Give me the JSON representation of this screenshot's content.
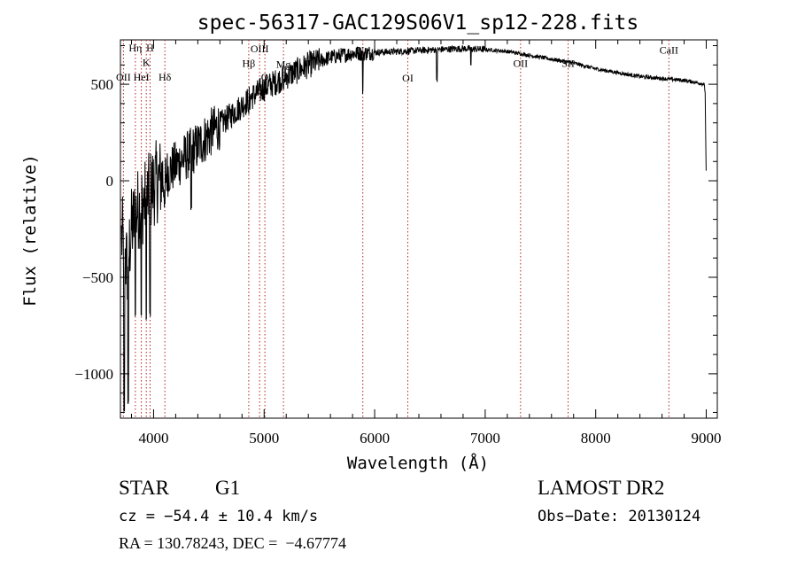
{
  "chart_data": {
    "type": "line",
    "title": "spec-56317-GAC129S06V1_sp12-228.fits",
    "xlabel": "Wavelength (Å)",
    "ylabel": "Flux (relative)",
    "xlim": [
      3700,
      9100
    ],
    "ylim": [
      -1230,
      730
    ],
    "xticks": [
      4000,
      5000,
      6000,
      7000,
      8000,
      9000
    ],
    "yticks": [
      -1000,
      -500,
      0,
      500
    ],
    "grid": false,
    "line_color": "#000000",
    "marker_color": "#b22222",
    "spectrum_anchors": [
      [
        3720,
        -300
      ],
      [
        3760,
        -450
      ],
      [
        3800,
        -250
      ],
      [
        3850,
        -150
      ],
      [
        3900,
        -120
      ],
      [
        3950,
        -80
      ],
      [
        4000,
        -20
      ],
      [
        4100,
        30
      ],
      [
        4200,
        80
      ],
      [
        4300,
        130
      ],
      [
        4400,
        180
      ],
      [
        4500,
        240
      ],
      [
        4600,
        290
      ],
      [
        4700,
        340
      ],
      [
        4800,
        390
      ],
      [
        4900,
        440
      ],
      [
        5000,
        480
      ],
      [
        5100,
        510
      ],
      [
        5200,
        540
      ],
      [
        5300,
        570
      ],
      [
        5400,
        600
      ],
      [
        5500,
        620
      ],
      [
        5600,
        640
      ],
      [
        5700,
        650
      ],
      [
        5800,
        660
      ],
      [
        5900,
        660
      ],
      [
        6000,
        665
      ],
      [
        6200,
        670
      ],
      [
        6400,
        675
      ],
      [
        6600,
        680
      ],
      [
        6800,
        685
      ],
      [
        7000,
        680
      ],
      [
        7200,
        670
      ],
      [
        7400,
        650
      ],
      [
        7600,
        630
      ],
      [
        7800,
        610
      ],
      [
        8000,
        580
      ],
      [
        8200,
        560
      ],
      [
        8400,
        540
      ],
      [
        8600,
        530
      ],
      [
        8800,
        520
      ],
      [
        8950,
        505
      ],
      [
        8980,
        500
      ],
      [
        8990,
        460
      ],
      [
        9000,
        10
      ]
    ],
    "absorption_dips": [
      [
        3734,
        -1200
      ],
      [
        3770,
        -1150
      ],
      [
        3835,
        -700
      ],
      [
        3889,
        -700
      ],
      [
        3934,
        -720
      ],
      [
        3968,
        -690
      ],
      [
        4102,
        -120
      ],
      [
        4340,
        -150
      ],
      [
        4861,
        350
      ],
      [
        5175,
        470
      ],
      [
        5893,
        460
      ],
      [
        6563,
        520
      ],
      [
        6870,
        600
      ]
    ],
    "lines": [
      {
        "label": "OII",
        "x": 3727,
        "y": 520
      },
      {
        "label": "Hη",
        "x": 3835,
        "y": 670
      },
      {
        "label": "HeI",
        "x": 3889,
        "y": 520
      },
      {
        "label": "K",
        "x": 3934,
        "y": 595
      },
      {
        "label": "H",
        "x": 3968,
        "y": 670
      },
      {
        "label": "Hδ",
        "x": 4102,
        "y": 520
      },
      {
        "label": "Hβ",
        "x": 4861,
        "y": 590
      },
      {
        "label": "OIII",
        "x": 4959,
        "y": 665
      },
      {
        "label": "O",
        "x": 5007,
        "y": 520
      },
      {
        "label": "Mg",
        "x": 5175,
        "y": 585
      },
      {
        "label": "Na",
        "x": 5893,
        "y": 660
      },
      {
        "label": "OI",
        "x": 6300,
        "y": 515
      },
      {
        "label": "OII",
        "x": 7320,
        "y": 590
      },
      {
        "label": "SII",
        "x": 7750,
        "y": 590
      },
      {
        "label": "CaII",
        "x": 8662,
        "y": 660
      }
    ]
  },
  "info": {
    "class": "STAR",
    "subclass": "G1",
    "redshift": "cz = −54.4 ± 10.4 km/s",
    "coords": "RA = 130.78243, DEC =  −4.67774",
    "survey": "LAMOST DR2",
    "obsdate": "Obs−Date: 20130124"
  }
}
